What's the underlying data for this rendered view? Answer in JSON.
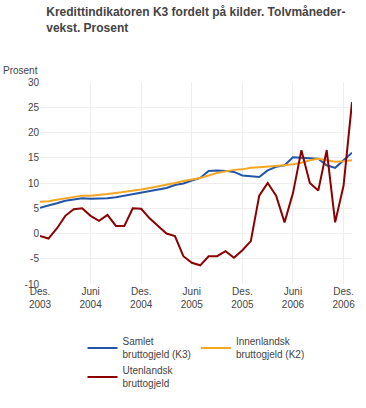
{
  "chart_data": {
    "type": "line",
    "title": "Kredittindikatoren K3 fordelt på kilder. Tolvmåneder-\nvekst. Prosent",
    "y_label": "Prosent",
    "categories": [
      "Des.\n2003",
      null,
      null,
      null,
      null,
      null,
      "Juni\n2004",
      null,
      null,
      null,
      null,
      null,
      "Des.\n2004",
      null,
      null,
      null,
      null,
      null,
      "Juni\n2005",
      null,
      null,
      null,
      null,
      null,
      "Des.\n2005",
      null,
      null,
      null,
      null,
      null,
      "Juni\n2006",
      null,
      null,
      null,
      null,
      null,
      "Des.\n2006",
      null
    ],
    "series": [
      {
        "name": "Samlet\nbruttogjeld (K3)",
        "color": "#2255aa",
        "values": [
          5.1,
          5.5,
          6.0,
          6.5,
          6.8,
          7.0,
          6.9,
          6.9,
          7.0,
          7.2,
          7.5,
          7.8,
          8.0,
          8.3,
          8.7,
          9.0,
          9.6,
          9.9,
          10.5,
          11.0,
          12.4,
          12.5,
          12.4,
          12.2,
          11.5,
          11.3,
          11.2,
          12.5,
          13.2,
          13.5,
          15.1,
          15.0,
          14.9,
          14.8,
          13.5,
          13.0,
          14.5,
          16.0
        ]
      },
      {
        "name": "Innenlandsk\nbruttogjeld (K2)",
        "color": "#f5a623",
        "values": [
          6.3,
          6.4,
          6.7,
          7.0,
          7.2,
          7.5,
          7.5,
          7.6,
          7.8,
          8.0,
          8.2,
          8.5,
          8.7,
          9.0,
          9.3,
          9.6,
          10.0,
          10.4,
          10.7,
          11.0,
          11.5,
          12.0,
          12.3,
          12.6,
          12.7,
          13.0,
          13.1,
          13.2,
          13.4,
          13.5,
          13.7,
          14.0,
          14.5,
          14.8,
          14.5,
          14.2,
          14.3,
          14.5
        ]
      },
      {
        "name": "Utenlandsk\nbruttogjeld",
        "color": "#8b0000",
        "values": [
          -0.5,
          -1.0,
          1.0,
          3.5,
          4.8,
          5.0,
          3.5,
          2.5,
          3.7,
          1.5,
          1.5,
          5.0,
          4.9,
          3.0,
          1.5,
          0.0,
          -0.5,
          -4.5,
          -5.8,
          -6.3,
          -4.5,
          -4.5,
          -3.5,
          -4.8,
          -3.3,
          -1.5,
          7.5,
          10.0,
          7.5,
          2.2,
          8.0,
          16.5,
          10.0,
          8.5,
          16.5,
          2.2,
          9.5,
          26.0
        ]
      }
    ],
    "ylim": [
      -10,
      30
    ],
    "yticks": [
      -10,
      -5,
      0,
      5,
      10,
      15,
      20,
      25,
      30
    ],
    "grid": true,
    "legend": "bottom"
  }
}
